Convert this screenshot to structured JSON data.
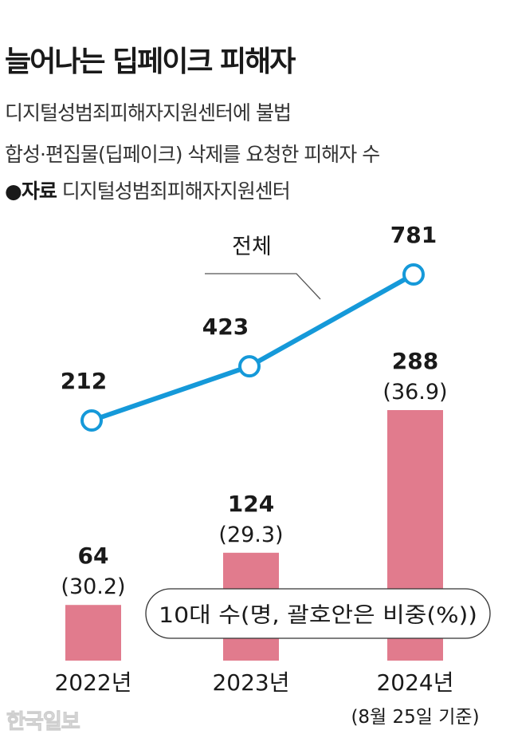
{
  "title": "늘어나는 딥페이크 피해자",
  "subtitle_line1": "디지털성범죄피해자지원센터에 불법",
  "subtitle_line2": "합성·편집물(딥페이크) 삭제를 요청한 피해자 수",
  "source_label": "●자료",
  "source_text": "디지털성범죄피해자지원센터",
  "watermark": "한국일보",
  "colors": {
    "line": "#1599d9",
    "bar": "#e17b8d",
    "text": "#1a1a1a"
  },
  "chart_data": {
    "type": "bar",
    "categories": [
      "2022년",
      "2023년",
      "2024년"
    ],
    "category_note": [
      "",
      "",
      "(8월 25일 기준)"
    ],
    "series": [
      {
        "name": "전체",
        "type": "line",
        "values": [
          212,
          423,
          781
        ],
        "labels": [
          "212",
          "423",
          "781"
        ]
      },
      {
        "name": "10대",
        "type": "bar",
        "values": [
          64,
          124,
          288
        ],
        "labels": [
          "64",
          "124",
          "288"
        ],
        "share_labels": [
          "(30.2)",
          "(29.3)",
          "(36.9)"
        ]
      }
    ],
    "legend_text": "10대 수(명, 괄호안은 비중(%))",
    "line_label": "전체"
  }
}
